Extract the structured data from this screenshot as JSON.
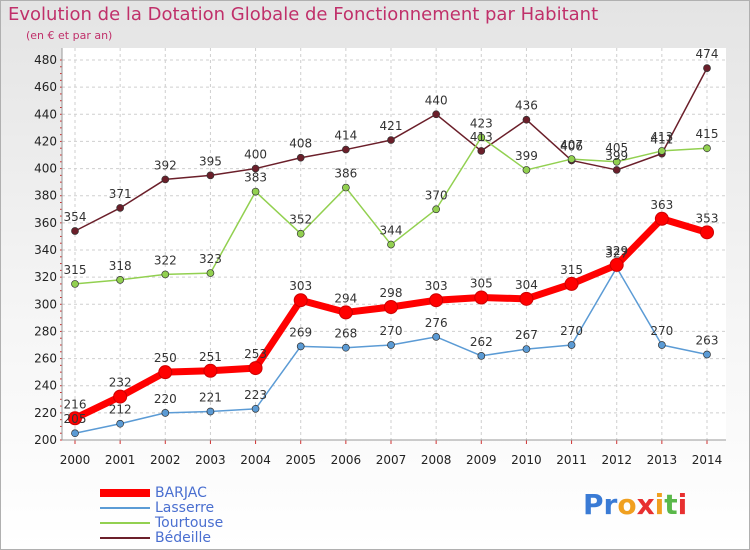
{
  "title": "Evolution de la Dotation Globale de Fonctionnement par Habitant",
  "subtitle": "(en € et par an)",
  "logo": {
    "letters": [
      "P",
      "r",
      "o",
      "x",
      "i",
      "t",
      "i"
    ],
    "colors": [
      "#3a7bd5",
      "#3a7bd5",
      "#f0a020",
      "#e83030",
      "#f0a020",
      "#5ab84a",
      "#e83030"
    ]
  },
  "chart_data": {
    "type": "line",
    "x": [
      2000,
      2001,
      2002,
      2003,
      2004,
      2005,
      2006,
      2007,
      2008,
      2009,
      2010,
      2011,
      2012,
      2013,
      2014
    ],
    "ylim": [
      200,
      480
    ],
    "yticks": [
      200,
      220,
      240,
      260,
      280,
      300,
      320,
      340,
      360,
      380,
      400,
      420,
      440,
      460,
      480
    ],
    "grid": true,
    "legend": "bottom-left",
    "series": [
      {
        "name": "BARJAC",
        "color": "#ff0000",
        "values": [
          216,
          232,
          250,
          251,
          253,
          303,
          294,
          298,
          303,
          305,
          304,
          315,
          329,
          363,
          353
        ]
      },
      {
        "name": "Lasserre",
        "color": "#5b9bd5",
        "values": [
          205,
          212,
          220,
          221,
          223,
          269,
          268,
          270,
          276,
          262,
          267,
          270,
          327,
          270,
          263
        ]
      },
      {
        "name": "Tourtouse",
        "color": "#92d050",
        "values": [
          315,
          318,
          322,
          323,
          383,
          352,
          386,
          344,
          370,
          423,
          399,
          407,
          405,
          413,
          415
        ]
      },
      {
        "name": "Bédeille",
        "color": "#6b1f2a",
        "values": [
          354,
          371,
          392,
          395,
          400,
          408,
          414,
          421,
          440,
          413,
          436,
          406,
          399,
          411,
          474
        ]
      }
    ]
  }
}
